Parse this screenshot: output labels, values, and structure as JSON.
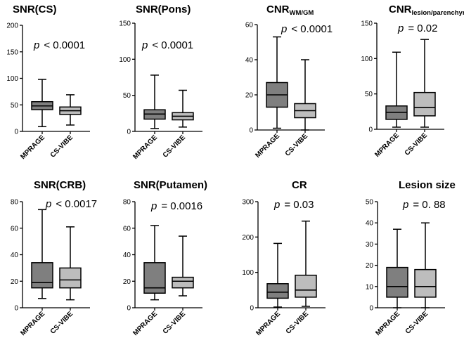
{
  "colors": {
    "MPRAGE": "#7f7f7f",
    "CS-VIBE": "#bdbdbd",
    "line": "#000000"
  },
  "chart_data": [
    {
      "type": "box",
      "title": "SNR(CS)",
      "title_sub": "",
      "p_label": "p",
      "p_rest": "< 0.0001",
      "categories": [
        "MPRAGE",
        "CS-VIBE"
      ],
      "ylim": [
        0,
        200
      ],
      "yticks": [
        0,
        50,
        100,
        150,
        200
      ],
      "boxes": [
        {
          "min": 9,
          "q1": 41,
          "median": 48,
          "q3": 56,
          "max": 98
        },
        {
          "min": 12,
          "q1": 32,
          "median": 39,
          "q3": 46,
          "max": 69
        }
      ]
    },
    {
      "type": "box",
      "title": "SNR(Pons)",
      "title_sub": "",
      "p_label": "p",
      "p_rest": "< 0.0001",
      "categories": [
        "MPRAGE",
        "CS-VIBE"
      ],
      "ylim": [
        0,
        150
      ],
      "yticks": [
        0,
        50,
        100,
        150
      ],
      "boxes": [
        {
          "min": 4,
          "q1": 17,
          "median": 24,
          "q3": 30,
          "max": 78
        },
        {
          "min": 6,
          "q1": 16,
          "median": 21,
          "q3": 26,
          "max": 57
        }
      ]
    },
    {
      "type": "box",
      "title": "CNR",
      "title_sub": "WM/GM",
      "p_label": "p",
      "p_rest": "< 0.0001",
      "categories": [
        "MPRAGE",
        "CS-VIBE"
      ],
      "ylim": [
        0,
        60
      ],
      "yticks": [
        0,
        20,
        40,
        60
      ],
      "boxes": [
        {
          "min": 1,
          "q1": 13,
          "median": 20,
          "q3": 27,
          "max": 53
        },
        {
          "min": 0,
          "q1": 7,
          "median": 11,
          "q3": 15,
          "max": 40
        }
      ]
    },
    {
      "type": "box",
      "title": "CNR",
      "title_sub": "lesion/parenchyma",
      "p_label": "p",
      "p_rest": "= 0.02",
      "categories": [
        "MPRAGE",
        "CS-VIBE"
      ],
      "ylim": [
        0,
        150
      ],
      "yticks": [
        0,
        50,
        100,
        150
      ],
      "boxes": [
        {
          "min": 3,
          "q1": 14,
          "median": 24,
          "q3": 33,
          "max": 109
        },
        {
          "min": 3,
          "q1": 19,
          "median": 31,
          "q3": 52,
          "max": 127
        }
      ]
    },
    {
      "type": "box",
      "title": "SNR(CRB)",
      "title_sub": "",
      "p_label": "p",
      "p_rest": "< 0.0017",
      "categories": [
        "MPRAGE",
        "CS-VIBE"
      ],
      "ylim": [
        0,
        80
      ],
      "yticks": [
        0,
        20,
        40,
        60,
        80
      ],
      "boxes": [
        {
          "min": 7,
          "q1": 15,
          "median": 19,
          "q3": 34,
          "max": 74
        },
        {
          "min": 6,
          "q1": 15,
          "median": 21,
          "q3": 30,
          "max": 61
        }
      ]
    },
    {
      "type": "box",
      "title": "SNR(Putamen)",
      "title_sub": "",
      "p_label": "p",
      "p_rest": "= 0.0016",
      "categories": [
        "MPRAGE",
        "CS-VIBE"
      ],
      "ylim": [
        0,
        80
      ],
      "yticks": [
        0,
        20,
        40,
        60,
        80
      ],
      "boxes": [
        {
          "min": 6,
          "q1": 11,
          "median": 15,
          "q3": 34,
          "max": 62
        },
        {
          "min": 9,
          "q1": 15,
          "median": 20,
          "q3": 23,
          "max": 54
        }
      ]
    },
    {
      "type": "box",
      "title": "CR",
      "title_sub": "",
      "p_label": "p",
      "p_rest": "= 0.03",
      "categories": [
        "MPRAGE",
        "CS-VIBE"
      ],
      "ylim": [
        0,
        300
      ],
      "yticks": [
        0,
        100,
        200,
        300
      ],
      "boxes": [
        {
          "min": 2,
          "q1": 27,
          "median": 44,
          "q3": 68,
          "max": 182
        },
        {
          "min": 4,
          "q1": 30,
          "median": 50,
          "q3": 92,
          "max": 245
        }
      ]
    },
    {
      "type": "box",
      "title": "Lesion size",
      "title_sub": "",
      "p_label": "p",
      "p_rest": "= 0. 88",
      "categories": [
        "MPRAGE",
        "CS-VIBE"
      ],
      "ylim": [
        0,
        50
      ],
      "yticks": [
        0,
        10,
        20,
        30,
        40,
        50
      ],
      "boxes": [
        {
          "min": 0,
          "q1": 5,
          "median": 10,
          "q3": 19,
          "max": 37
        },
        {
          "min": 0,
          "q1": 5,
          "median": 10,
          "q3": 18,
          "max": 40
        }
      ]
    }
  ]
}
